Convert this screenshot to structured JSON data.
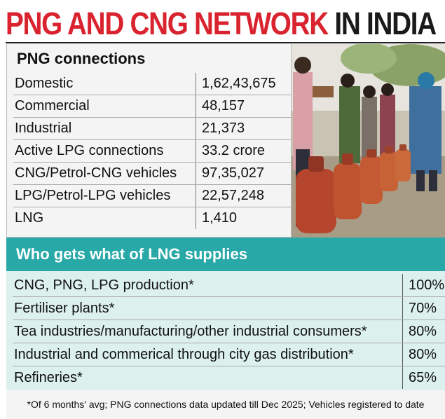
{
  "headline": {
    "red_part": "PNG AND CNG NETWORK",
    "black_part": "IN INDIA"
  },
  "colors": {
    "headline_red": "#d9232e",
    "teal_header": "#29a8a8",
    "teal_light": "#dcf0ee"
  },
  "png_section": {
    "title": "PNG connections",
    "rows": [
      {
        "label": "Domestic",
        "value": "1,62,43,675"
      },
      {
        "label": "Commercial",
        "value": "48,157"
      },
      {
        "label": "Industrial",
        "value": "21,373"
      },
      {
        "label": "Active LPG connections",
        "value": "33.2 crore"
      },
      {
        "label": "CNG/Petrol-CNG vehicles",
        "value": "97,35,027"
      },
      {
        "label": "LPG/Petrol-LPG vehicles",
        "value": "22,57,248"
      },
      {
        "label": "LNG",
        "value": "1,410"
      }
    ]
  },
  "lng_section": {
    "title": "Who gets what of LNG supplies",
    "rows": [
      {
        "label": "CNG, PNG, LPG production*",
        "value": "100%"
      },
      {
        "label": "Fertiliser plants*",
        "value": "70%"
      },
      {
        "label": "Tea industries/manufacturing/other industrial consumers*",
        "value": "80%"
      },
      {
        "label": "Industrial and commerical through city gas distribution*",
        "value": "80%"
      },
      {
        "label": "Refineries*",
        "value": "65%"
      }
    ]
  },
  "footnote": "*Of 6 months' avg; PNG connections data updated till Dec 2025; Vehicles registered to date"
}
